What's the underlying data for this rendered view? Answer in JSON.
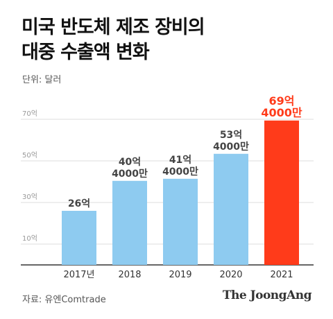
{
  "title_lines": [
    "미국 반도체 제조 장비의",
    "대중 수출액 변화"
  ],
  "unit": "단위: 달러",
  "source": "자료: 유엔Comtrade",
  "brand": "The JoongAng",
  "colors": {
    "bar": "#8ecbf0",
    "highlight": "#ff3b1a",
    "label": "#444444",
    "grid": "#dddddd",
    "axis": "#333333",
    "tick": "#999999"
  },
  "chart_data": {
    "type": "bar",
    "categories": [
      "2017년",
      "2018",
      "2019",
      "2020",
      "2021"
    ],
    "values": [
      26,
      40.4,
      41.4,
      53.4,
      69.4
    ],
    "value_labels": [
      [
        "26억"
      ],
      [
        "40억",
        "4000만"
      ],
      [
        "41억",
        "4000만"
      ],
      [
        "53억",
        "4000만"
      ],
      [
        "69억",
        "4000만"
      ]
    ],
    "highlight_index": 4,
    "yticks": [
      10,
      30,
      50,
      70
    ],
    "ytick_labels": [
      "10억",
      "30억",
      "50억",
      "70억"
    ],
    "ylim": [
      0,
      75
    ],
    "ylabel": "",
    "xlabel": "",
    "grid": true
  }
}
